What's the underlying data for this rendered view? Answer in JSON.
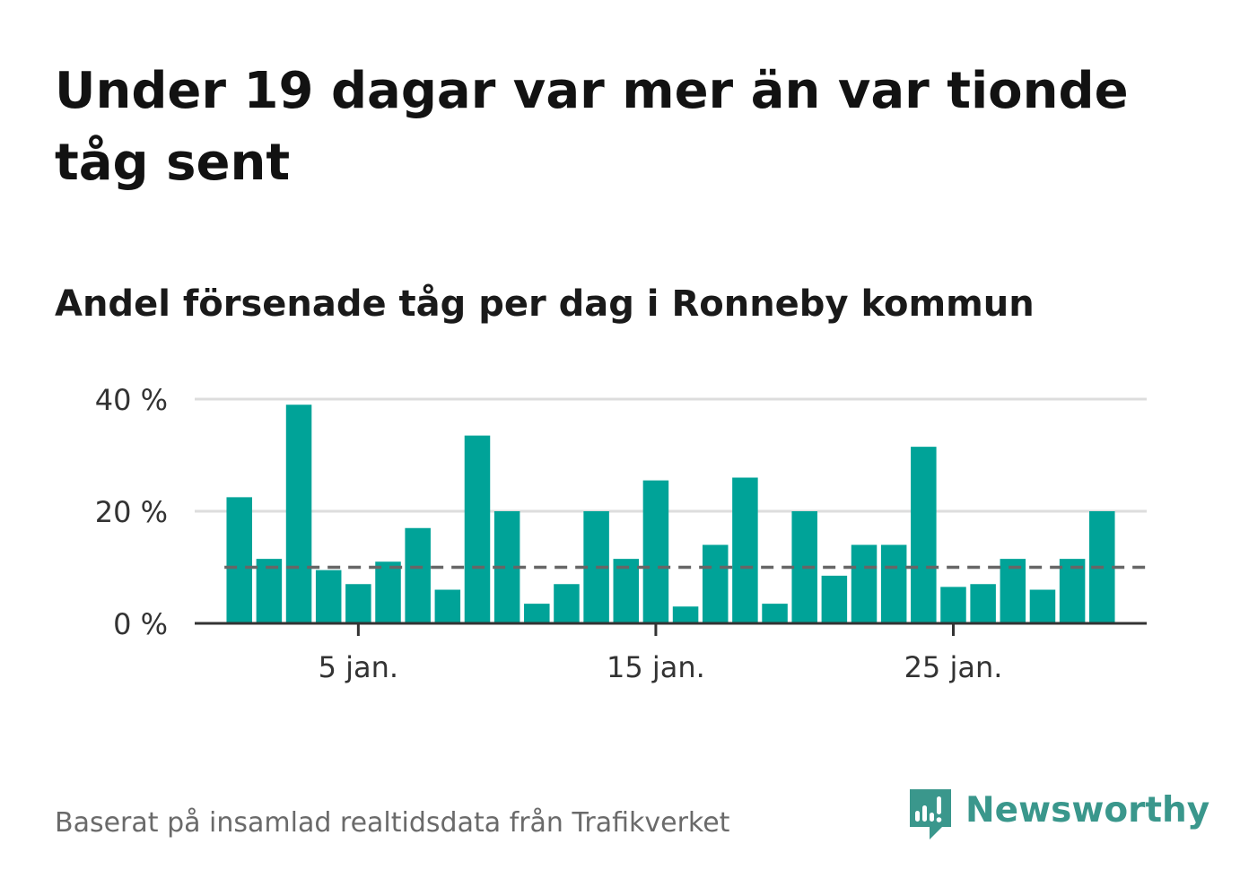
{
  "title": "Under 19 dagar var mer än var tionde tåg sent",
  "subtitle": "Andel försenade tåg per dag i Ronneby kommun",
  "source": "Baserat på insamlad realtidsdata från Trafikverket",
  "brand": {
    "name": "Newsworthy",
    "color": "#3a978c",
    "icon": "newsworthy-logo-icon"
  },
  "colors": {
    "bar": "#00a398",
    "reference_line": "#666666",
    "grid": "#dddddd",
    "axis": "#333333"
  },
  "chart_data": {
    "type": "bar",
    "title": "Andel försenade tåg per dag i Ronneby kommun",
    "xlabel": "",
    "ylabel": "",
    "x": [
      1,
      2,
      3,
      4,
      5,
      6,
      7,
      8,
      9,
      10,
      11,
      12,
      13,
      14,
      15,
      16,
      17,
      18,
      19,
      20,
      21,
      22,
      23,
      24,
      25,
      26,
      27,
      28,
      29,
      30
    ],
    "values": [
      22.5,
      11.5,
      39,
      9.5,
      7,
      11,
      17,
      6,
      33.5,
      20,
      3.5,
      7,
      20,
      11.5,
      25.5,
      3,
      14,
      26,
      3.5,
      20,
      8.5,
      14,
      14,
      31.5,
      6.5,
      7,
      11.5,
      6,
      11.5,
      20
    ],
    "unit": "%",
    "xlim": [
      -0.5,
      31.5
    ],
    "ylim": [
      0,
      40
    ],
    "y_ticks": [
      0,
      20,
      40
    ],
    "y_tick_labels": [
      "0 %",
      "20 %",
      "40 %"
    ],
    "x_ticks": [
      5,
      15,
      25
    ],
    "x_tick_labels": [
      "5 jan.",
      "15 jan.",
      "25 jan."
    ],
    "reference_line": {
      "value": 10,
      "style": "dashed"
    },
    "grid": true,
    "legend": "none"
  }
}
